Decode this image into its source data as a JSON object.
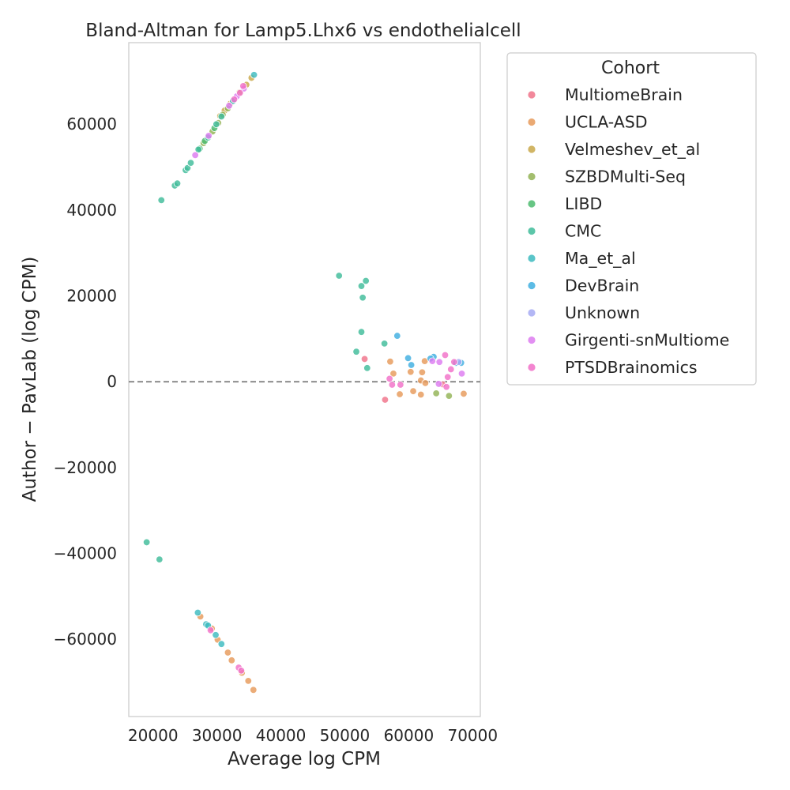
{
  "chart_data": {
    "type": "scatter",
    "title": "Bland-Altman for Lamp5.Lhx6 vs endothelialcell",
    "xlabel": "Average log CPM",
    "ylabel": "Author − PavLab (log CPM)",
    "xlim": [
      16200,
      71200
    ],
    "ylim": [
      -78000,
      79000
    ],
    "xticks": [
      20000,
      30000,
      40000,
      50000,
      60000,
      70000
    ],
    "yticks": [
      -60000,
      -40000,
      -20000,
      0,
      20000,
      40000,
      60000
    ],
    "xtick_labels": [
      "20000",
      "30000",
      "40000",
      "50000",
      "60000",
      "70000"
    ],
    "ytick_labels": [
      "−60000",
      "−40000",
      "−20000",
      "0",
      "20000",
      "40000",
      "60000"
    ],
    "reference_line": {
      "y": 0,
      "style": "dashed"
    },
    "grid": false,
    "legend": {
      "title": "Cohort",
      "position": "outside-right"
    },
    "series": [
      {
        "name": "MultiomeBrain",
        "color": "#f0738a",
        "points": [
          [
            53100,
            5300
          ],
          [
            56300,
            -4200
          ],
          [
            65300,
            -600
          ]
        ]
      },
      {
        "name": "UCLA-ASD",
        "color": "#e69a5a",
        "points": [
          [
            27400,
            -54700
          ],
          [
            29200,
            -57500
          ],
          [
            30100,
            -60100
          ],
          [
            31700,
            -63100
          ],
          [
            32300,
            -64900
          ],
          [
            33900,
            -67800
          ],
          [
            34900,
            -69700
          ],
          [
            35700,
            -71800
          ],
          [
            57100,
            4700
          ],
          [
            57600,
            1900
          ],
          [
            58600,
            -2900
          ],
          [
            60300,
            2300
          ],
          [
            60700,
            -2200
          ],
          [
            61900,
            300
          ],
          [
            62100,
            2200
          ],
          [
            62500,
            4800
          ],
          [
            62600,
            -300
          ],
          [
            61900,
            -3000
          ],
          [
            68600,
            -2800
          ]
        ]
      },
      {
        "name": "Velmeshev_et_al",
        "color": "#c9a84a",
        "points": [
          [
            35400,
            70800
          ],
          [
            34600,
            69200
          ],
          [
            33500,
            67400
          ],
          [
            32100,
            64800
          ],
          [
            31200,
            63200
          ],
          [
            30500,
            61900
          ]
        ]
      },
      {
        "name": "SZBDMulti-Seq",
        "color": "#93b355",
        "points": [
          [
            27900,
            55600
          ],
          [
            29300,
            58300
          ],
          [
            30200,
            60300
          ],
          [
            30900,
            62200
          ],
          [
            31700,
            63700
          ],
          [
            64300,
            -2700
          ],
          [
            66300,
            -3300
          ]
        ]
      },
      {
        "name": "LIBD",
        "color": "#4cbb6f",
        "points": [
          [
            27300,
            54300
          ],
          [
            28100,
            56100
          ],
          [
            29600,
            59100
          ]
        ]
      },
      {
        "name": "CMC",
        "color": "#3fbc9a",
        "points": [
          [
            21300,
            42300
          ],
          [
            23400,
            45700
          ],
          [
            23800,
            46200
          ],
          [
            25100,
            49300
          ],
          [
            25400,
            49800
          ],
          [
            25900,
            51000
          ],
          [
            27100,
            54100
          ],
          [
            28600,
            56900
          ],
          [
            29900,
            60000
          ],
          [
            30700,
            61800
          ],
          [
            49100,
            24700
          ],
          [
            52600,
            22300
          ],
          [
            53300,
            23500
          ],
          [
            52800,
            19600
          ],
          [
            52600,
            11600
          ],
          [
            51800,
            7000
          ],
          [
            53500,
            3200
          ],
          [
            56200,
            8900
          ],
          [
            19000,
            -37400
          ],
          [
            21000,
            -41400
          ]
        ]
      },
      {
        "name": "Ma_et_al",
        "color": "#3dbbc0",
        "points": [
          [
            35800,
            71500
          ],
          [
            32500,
            65400
          ],
          [
            27000,
            -53800
          ],
          [
            28300,
            -56500
          ],
          [
            28600,
            -56800
          ],
          [
            29800,
            -59000
          ],
          [
            30700,
            -61100
          ]
        ]
      },
      {
        "name": "DevBrain",
        "color": "#3fafe0",
        "points": [
          [
            58200,
            10700
          ],
          [
            59900,
            5500
          ],
          [
            60400,
            3900
          ],
          [
            63900,
            5800
          ],
          [
            63400,
            5400
          ],
          [
            67400,
            4400
          ],
          [
            68200,
            4400
          ]
        ]
      },
      {
        "name": "Unknown",
        "color": "#a6aaf3",
        "points": [
          [
            67800,
            4600
          ]
        ]
      },
      {
        "name": "Girgenti-snMultiome",
        "color": "#dd7bf0",
        "points": [
          [
            26600,
            52800
          ],
          [
            28700,
            57300
          ],
          [
            31900,
            64300
          ],
          [
            33100,
            66500
          ],
          [
            34200,
            68300
          ],
          [
            63700,
            4800
          ],
          [
            64800,
            4600
          ],
          [
            64700,
            -500
          ],
          [
            68300,
            1900
          ]
        ]
      },
      {
        "name": "PTSDBrainomics",
        "color": "#f170c8",
        "points": [
          [
            32700,
            65800
          ],
          [
            33600,
            67300
          ],
          [
            34100,
            68900
          ],
          [
            29000,
            -57900
          ],
          [
            33400,
            -66600
          ],
          [
            33800,
            -67300
          ],
          [
            57000,
            700
          ],
          [
            57400,
            -700
          ],
          [
            58700,
            -700
          ],
          [
            65700,
            6200
          ],
          [
            66100,
            1100
          ],
          [
            66600,
            2900
          ],
          [
            67100,
            4600
          ],
          [
            65900,
            -1200
          ]
        ]
      }
    ]
  }
}
